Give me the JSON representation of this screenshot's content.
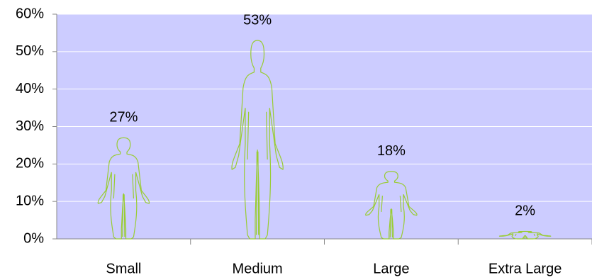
{
  "chart_data": {
    "type": "pictograph",
    "categories": [
      "Small",
      "Medium",
      "Large",
      "Extra Large"
    ],
    "values": [
      27,
      53,
      18,
      2
    ],
    "value_labels": [
      "27%",
      "53%",
      "18%",
      "2%"
    ],
    "color": "#99cc33",
    "background": "#ccccff",
    "ylim": [
      0,
      60
    ],
    "yticks": [
      {
        "value": 0,
        "label": "0%"
      },
      {
        "value": 10,
        "label": "10%"
      },
      {
        "value": 20,
        "label": "20%"
      },
      {
        "value": 30,
        "label": "30%"
      },
      {
        "value": 40,
        "label": "40%"
      },
      {
        "value": 50,
        "label": "50%"
      },
      {
        "value": 60,
        "label": "60%"
      }
    ],
    "grid": true
  }
}
